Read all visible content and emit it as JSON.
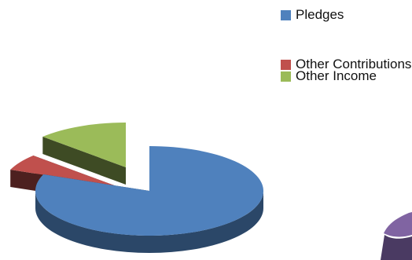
{
  "chart_data": {
    "type": "pie",
    "title": "",
    "slices": [
      {
        "label": "Pledges",
        "value": 81,
        "color": "#4F81BD"
      },
      {
        "label": "Other Contributions",
        "value": 6,
        "color": "#C0504D"
      },
      {
        "label": "Other Income",
        "value": 13,
        "color": "#9BBB59"
      }
    ],
    "legend_position": "top-right",
    "partially_visible_slice_color": "#8064A2"
  },
  "legend": {
    "items": [
      {
        "label": "Pledges",
        "color": "#4F81BD"
      },
      {
        "label": "Other Contributions",
        "color": "#C0504D"
      },
      {
        "label": "Other Income",
        "color": "#9BBB59"
      }
    ]
  }
}
